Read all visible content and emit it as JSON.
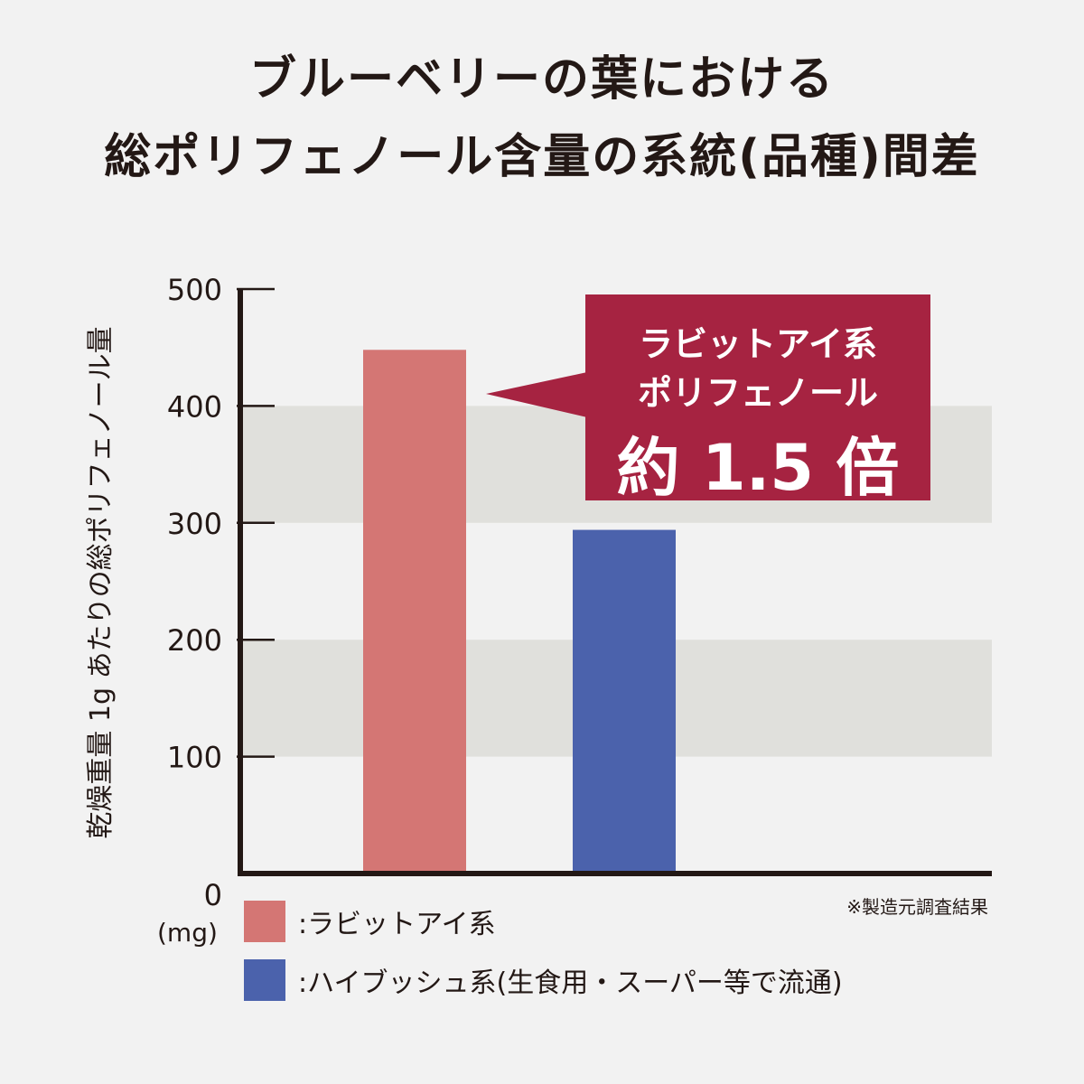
{
  "title_line1": "ブルーベリーの葉における",
  "title_line2": "総ポリフェノール含量の系統(品種)間差",
  "ylabel": "乾燥重量 1g あたりの総ポリフェノール量",
  "unit": "(mg)",
  "note": "※製造元調査結果",
  "callout": {
    "line1": "ラビットアイ系",
    "line2": "ポリフェノール",
    "line3": "約 1.5 倍",
    "color": "#a62341"
  },
  "legend": [
    {
      "label": ":ラビットアイ系",
      "color": "#d47674"
    },
    {
      "label": ":ハイブッシュ系(生食用・スーパー等で流通)",
      "color": "#4b62ac"
    }
  ],
  "chart_data": {
    "type": "bar",
    "categories": [
      "ラビットアイ系",
      "ハイブッシュ系"
    ],
    "values": [
      448,
      294
    ],
    "colors": [
      "#d47674",
      "#4b62ac"
    ],
    "ylabel": "乾燥重量 1g あたりの総ポリフェノール量",
    "yunit": "(mg)",
    "ylim": [
      0,
      500
    ],
    "yticks": [
      0,
      100,
      200,
      300,
      400,
      500
    ],
    "bands": [
      [
        100,
        200
      ],
      [
        300,
        400
      ]
    ],
    "band_color": "#e0e0dc"
  }
}
